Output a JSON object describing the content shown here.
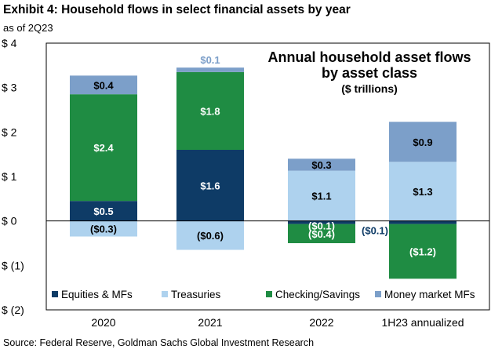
{
  "exhibit": {
    "title": "Exhibit 4: Household flows in select financial assets by year",
    "subtitle": "as of 2Q23",
    "source": "Source: Federal Reserve, Goldman Sachs Global Investment Research"
  },
  "colors": {
    "equities": "#0e3b66",
    "treasuries": "#aed2ee",
    "checking": "#1f8c43",
    "money_market": "#7c9fc9",
    "label_light": "#ffffff",
    "label_dark": "#000000",
    "label_mm_2021": "#7c9fc9",
    "label_eq_1h23": "#0e3b66"
  },
  "chart_data": {
    "type": "bar",
    "stacked": true,
    "title": "Annual household asset flows by asset class",
    "title_lines": [
      "Annual household asset flows",
      "by asset class"
    ],
    "subtitle": "($ trillions)",
    "categories": [
      "2020",
      "2021",
      "2022",
      "1H23 annualized"
    ],
    "y_tick_labels": [
      "$ 4",
      "$ 3",
      "$ 2",
      "$ 1",
      "$ 0",
      "$ (1)",
      "$ (2)"
    ],
    "y_tick_values": [
      4,
      3,
      2,
      1,
      0,
      -1,
      -2
    ],
    "ylim": [
      -2,
      4
    ],
    "grid": false,
    "legend_position": "bottom",
    "series": [
      {
        "name": "Equities & MFs",
        "color_key": "equities",
        "values": [
          0.45,
          1.6,
          -0.07,
          -0.07
        ],
        "labels": [
          "$0.5",
          "$1.6",
          "($0.1)",
          "($0.1)"
        ]
      },
      {
        "name": "Treasuries",
        "color_key": "treasuries",
        "values": [
          -0.35,
          -0.65,
          1.13,
          1.33
        ],
        "labels": [
          "($0.3)",
          "($0.6)",
          "$1.1",
          "$1.3"
        ]
      },
      {
        "name": "Checking/Savings",
        "color_key": "checking",
        "values": [
          2.4,
          1.75,
          -0.43,
          -1.23
        ],
        "labels": [
          "$2.4",
          "$1.8",
          "($0.4)",
          "($1.2)"
        ]
      },
      {
        "name": "Money market MFs",
        "color_key": "money_market",
        "values": [
          0.42,
          0.1,
          0.27,
          0.9
        ],
        "labels": [
          "$0.4",
          "$0.1",
          "$0.3",
          "$0.9"
        ]
      }
    ]
  }
}
